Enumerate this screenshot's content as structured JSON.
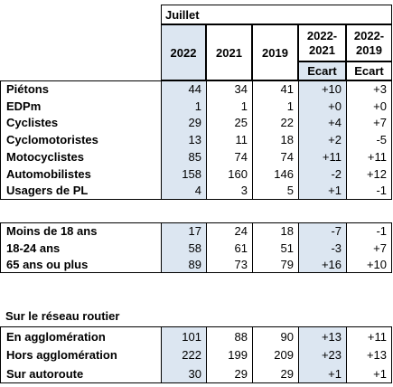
{
  "header": {
    "month": "Juillet",
    "col_2022": "2022",
    "col_2021": "2021",
    "col_2019": "2019",
    "col_diff1_line1": "2022-",
    "col_diff1_line2": "2021",
    "col_diff2_line1": "2022-",
    "col_diff2_line2": "2019",
    "ecart1": "Ecart",
    "ecart2": "Ecart"
  },
  "section1": {
    "rows": [
      {
        "label": "Piétons",
        "v2022": "44",
        "v2021": "34",
        "v2019": "41",
        "d1": "+10",
        "d2": "+3"
      },
      {
        "label": "EDPm",
        "v2022": "1",
        "v2021": "1",
        "v2019": "1",
        "d1": "+0",
        "d2": "+0"
      },
      {
        "label": "Cyclistes",
        "v2022": "29",
        "v2021": "25",
        "v2019": "22",
        "d1": "+4",
        "d2": "+7"
      },
      {
        "label": "Cyclomotoristes",
        "v2022": "13",
        "v2021": "11",
        "v2019": "18",
        "d1": "+2",
        "d2": "-5"
      },
      {
        "label": "Motocyclistes",
        "v2022": "85",
        "v2021": "74",
        "v2019": "74",
        "d1": "+11",
        "d2": "+11"
      },
      {
        "label": "Automobilistes",
        "v2022": "158",
        "v2021": "160",
        "v2019": "146",
        "d1": "-2",
        "d2": "+12"
      },
      {
        "label": "Usagers de PL",
        "v2022": "4",
        "v2021": "3",
        "v2019": "5",
        "d1": "+1",
        "d2": "-1"
      }
    ]
  },
  "section2": {
    "rows": [
      {
        "label": "Moins de 18 ans",
        "v2022": "17",
        "v2021": "24",
        "v2019": "18",
        "d1": "-7",
        "d2": "-1"
      },
      {
        "label": "18-24 ans",
        "v2022": "58",
        "v2021": "61",
        "v2019": "51",
        "d1": "-3",
        "d2": "+7"
      },
      {
        "label": "65 ans ou plus",
        "v2022": "89",
        "v2021": "73",
        "v2019": "79",
        "d1": "+16",
        "d2": "+10"
      }
    ]
  },
  "section3": {
    "title": "Sur le réseau routier",
    "rows": [
      {
        "label": "En agglomération",
        "v2022": "101",
        "v2021": "88",
        "v2019": "90",
        "d1": "+13",
        "d2": "+11"
      },
      {
        "label": "Hors agglomération",
        "v2022": "222",
        "v2021": "199",
        "v2019": "209",
        "d1": "+23",
        "d2": "+13"
      },
      {
        "label": "Sur autoroute",
        "v2022": "30",
        "v2021": "29",
        "v2019": "29",
        "d1": "+1",
        "d2": "+1"
      }
    ]
  }
}
